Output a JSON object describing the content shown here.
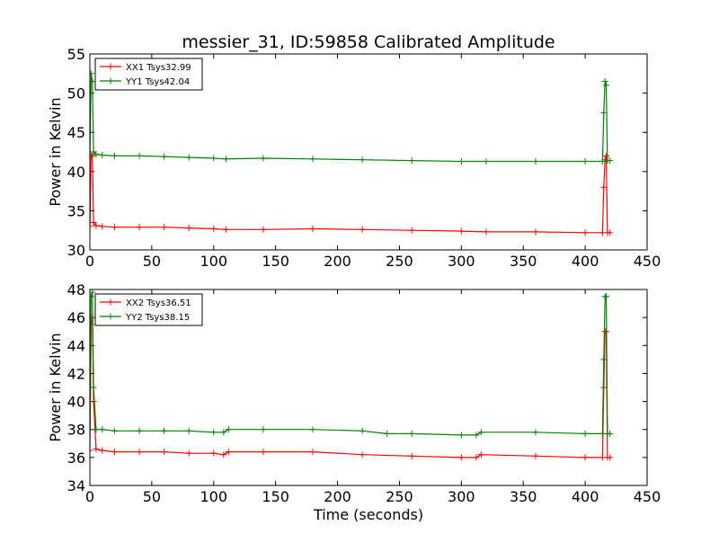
{
  "figure": {
    "title": "messier_31, ID:59858 Calibrated Amplitude",
    "xlabel": "Time (seconds)"
  },
  "colors": {
    "XX": "#ff0000",
    "YY": "#008000",
    "axes": "#000000"
  },
  "chart_data": [
    {
      "type": "line",
      "title": "messier_31, ID:59858 Calibrated Amplitude",
      "xlabel": "",
      "ylabel": "Power in Kelvin",
      "xlim": [
        0,
        450
      ],
      "ylim": [
        30,
        55
      ],
      "x_ticks": [
        0,
        50,
        100,
        150,
        200,
        250,
        300,
        350,
        400,
        450
      ],
      "y_ticks": [
        30,
        35,
        40,
        45,
        50,
        55
      ],
      "legend_position": "top-left",
      "grid": false,
      "series": [
        {
          "name": "XX1 Tsys32.99",
          "color": "#ff0000",
          "x": [
            0,
            1,
            2,
            3,
            5,
            10,
            20,
            40,
            60,
            80,
            100,
            110,
            140,
            180,
            220,
            260,
            300,
            320,
            360,
            400,
            414,
            415,
            416,
            417,
            418,
            420
          ],
          "y": [
            33.0,
            42.0,
            42.0,
            33.5,
            33.1,
            33.0,
            32.9,
            32.9,
            32.9,
            32.8,
            32.7,
            32.6,
            32.6,
            32.7,
            32.6,
            32.5,
            32.4,
            32.3,
            32.3,
            32.2,
            32.2,
            38.0,
            41.5,
            42.0,
            32.2,
            32.2
          ]
        },
        {
          "name": "YY1 Tsys42.04",
          "color": "#008000",
          "x": [
            0,
            1,
            2,
            3,
            5,
            10,
            20,
            40,
            60,
            80,
            100,
            110,
            140,
            180,
            220,
            260,
            300,
            320,
            360,
            400,
            414,
            415,
            416,
            417,
            418,
            420
          ],
          "y": [
            42.0,
            52.5,
            51.5,
            42.5,
            42.2,
            42.1,
            42.0,
            42.0,
            41.9,
            41.8,
            41.7,
            41.6,
            41.7,
            41.6,
            41.5,
            41.4,
            41.3,
            41.3,
            41.3,
            41.3,
            41.3,
            47.5,
            51.5,
            51.0,
            41.4,
            41.4
          ]
        }
      ]
    },
    {
      "type": "line",
      "title": "",
      "xlabel": "Time (seconds)",
      "ylabel": "Power in Kelvin",
      "xlim": [
        0,
        450
      ],
      "ylim": [
        34,
        48
      ],
      "x_ticks": [
        0,
        50,
        100,
        150,
        200,
        250,
        300,
        350,
        400,
        450
      ],
      "y_ticks": [
        34,
        36,
        38,
        40,
        42,
        44,
        46,
        48
      ],
      "legend_position": "top-left",
      "grid": false,
      "series": [
        {
          "name": "XX2 Tsys36.51",
          "color": "#ff0000",
          "x": [
            0,
            1,
            2,
            3,
            5,
            10,
            20,
            40,
            60,
            80,
            100,
            108,
            112,
            140,
            180,
            220,
            260,
            300,
            312,
            316,
            360,
            400,
            414,
            415,
            416,
            417,
            418,
            420
          ],
          "y": [
            36.5,
            45.5,
            46.0,
            40.0,
            36.6,
            36.5,
            36.4,
            36.4,
            36.4,
            36.3,
            36.3,
            36.2,
            36.4,
            36.4,
            36.4,
            36.2,
            36.1,
            36.0,
            36.0,
            36.2,
            36.1,
            36.0,
            36.0,
            41.0,
            45.0,
            45.0,
            36.0,
            36.0
          ]
        },
        {
          "name": "YY2 Tsys38.15",
          "color": "#008000",
          "x": [
            0,
            1,
            2,
            3,
            5,
            10,
            20,
            40,
            60,
            80,
            100,
            108,
            112,
            140,
            180,
            220,
            240,
            260,
            300,
            312,
            316,
            360,
            400,
            414,
            415,
            416,
            417,
            418,
            420
          ],
          "y": [
            38.0,
            47.5,
            47.8,
            41.0,
            38.0,
            38.0,
            37.9,
            37.9,
            37.9,
            37.9,
            37.8,
            37.8,
            38.0,
            38.0,
            38.0,
            37.9,
            37.7,
            37.7,
            37.6,
            37.6,
            37.8,
            37.8,
            37.7,
            37.7,
            43.0,
            47.5,
            47.5,
            37.7,
            37.7
          ]
        }
      ]
    }
  ]
}
